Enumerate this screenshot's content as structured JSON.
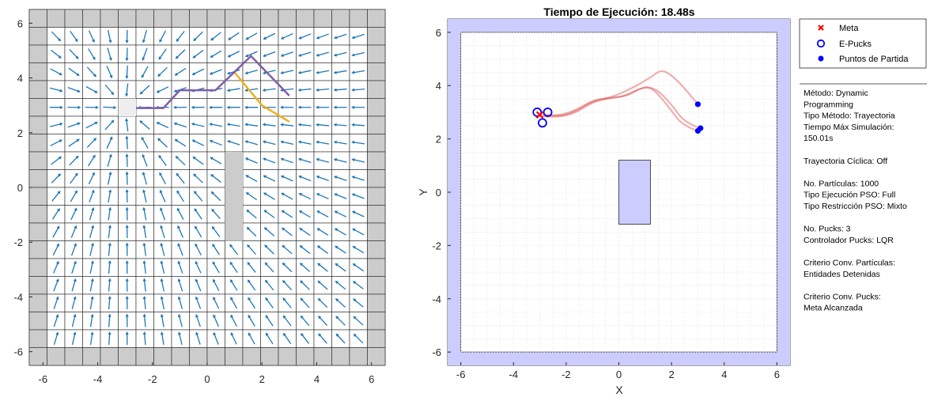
{
  "chart_data": [
    {
      "type": "quiver",
      "title": "",
      "xlabel": "",
      "ylabel": "",
      "xlim": [
        -6.5,
        6.5
      ],
      "ylim": [
        -6.5,
        6.5
      ],
      "xticks": [
        "-6",
        "-4",
        "-2",
        "0",
        "2",
        "4",
        "6"
      ],
      "yticks": [
        "6",
        "4",
        "2",
        "0",
        "-2",
        "-4",
        "-6"
      ],
      "grid_step": 0.65,
      "grid": true,
      "goal": [
        -3.0,
        2.9
      ],
      "obstacle_cells": [
        [
          1,
          -1.3
        ],
        [
          1,
          -0.65
        ],
        [
          1,
          0
        ],
        [
          1,
          0.65
        ],
        [
          1,
          1.3
        ]
      ],
      "path_purple": [
        [
          -2.6,
          2.9
        ],
        [
          -1.6,
          2.9
        ],
        [
          -1.0,
          3.55
        ],
        [
          0.3,
          3.55
        ],
        [
          1.6,
          4.8
        ],
        [
          3.0,
          3.35
        ]
      ],
      "path_orange": [
        [
          1.0,
          4.2
        ],
        [
          2.0,
          3.0
        ],
        [
          3.0,
          2.4
        ]
      ],
      "arrow_color": "#1f77b4",
      "cell_color": "#cccccc",
      "path_purple_color": "#7e5fa8",
      "path_orange_color": "#edb120"
    },
    {
      "type": "line",
      "title": "Tiempo de Ejecución: 18.48s",
      "xlabel": "X",
      "ylabel": "Y",
      "xlim": [
        -6.5,
        6.5
      ],
      "ylim": [
        -6.5,
        6.5
      ],
      "xticks": [
        "-6",
        "-4",
        "-2",
        "0",
        "2",
        "4",
        "6"
      ],
      "yticks": [
        "6",
        "4",
        "2",
        "0",
        "-2",
        "-4",
        "-6"
      ],
      "grid": true,
      "arena": [
        -6,
        -6,
        6,
        6
      ],
      "obstacle": [
        0,
        -1.2,
        1.2,
        1.2
      ],
      "meta": [
        -3.0,
        2.9
      ],
      "epucks": [
        [
          -3.1,
          3.0
        ],
        [
          -2.7,
          3.0
        ],
        [
          -2.9,
          2.6
        ]
      ],
      "start_points": [
        [
          3.0,
          3.3
        ],
        [
          3.1,
          2.4
        ],
        [
          3.0,
          2.3
        ]
      ],
      "trajectories": [
        [
          [
            3.0,
            3.3
          ],
          [
            2.5,
            3.9
          ],
          [
            2.0,
            4.4
          ],
          [
            1.6,
            4.6
          ],
          [
            1.2,
            4.3
          ],
          [
            0.5,
            3.9
          ],
          [
            -0.3,
            3.55
          ],
          [
            -1.0,
            3.45
          ],
          [
            -1.6,
            3.1
          ],
          [
            -2.2,
            2.88
          ],
          [
            -2.9,
            2.9
          ]
        ],
        [
          [
            3.1,
            2.4
          ],
          [
            2.5,
            2.6
          ],
          [
            2.0,
            3.3
          ],
          [
            1.4,
            3.9
          ],
          [
            0.9,
            3.95
          ],
          [
            0.3,
            3.6
          ],
          [
            -0.3,
            3.55
          ],
          [
            -1.0,
            3.42
          ],
          [
            -1.6,
            3.05
          ],
          [
            -2.2,
            2.85
          ],
          [
            -2.8,
            2.88
          ]
        ],
        [
          [
            3.0,
            2.3
          ],
          [
            2.4,
            2.5
          ],
          [
            1.9,
            3.2
          ],
          [
            1.2,
            4.0
          ],
          [
            0.7,
            3.85
          ],
          [
            0.2,
            3.6
          ],
          [
            -0.4,
            3.52
          ],
          [
            -1.0,
            3.38
          ],
          [
            -1.6,
            3.0
          ],
          [
            -2.2,
            2.82
          ],
          [
            -2.9,
            2.85
          ]
        ]
      ],
      "trajectory_color": "#d9534f",
      "arena_fill": "#ccccff",
      "puck_color": "#0000ff",
      "meta_color": "#ff0000"
    }
  ],
  "legend": {
    "items": [
      {
        "label": "Meta"
      },
      {
        "label": "E-Pucks"
      },
      {
        "label": "Puntos de Partida"
      }
    ]
  },
  "info": {
    "lines": [
      "Método: Dynamic",
      "Programming",
      "Tipo Método: Trayectoria",
      "Tiempo Máx Simulación:",
      "150.01s",
      "",
      "Trayectoria Cíclica: Off",
      "",
      "No. Partículas: 1000",
      "Tipo Ejecución PSO: Full",
      "Tipo Restricción PSO: Mixto",
      "",
      "No. Pucks: 3",
      "Controlador Pucks: LQR",
      "",
      "Criterio Conv. Partículas:",
      "Entidades Detenidas",
      "",
      "Criterio Conv. Pucks:",
      "Meta Alcanzada"
    ]
  }
}
